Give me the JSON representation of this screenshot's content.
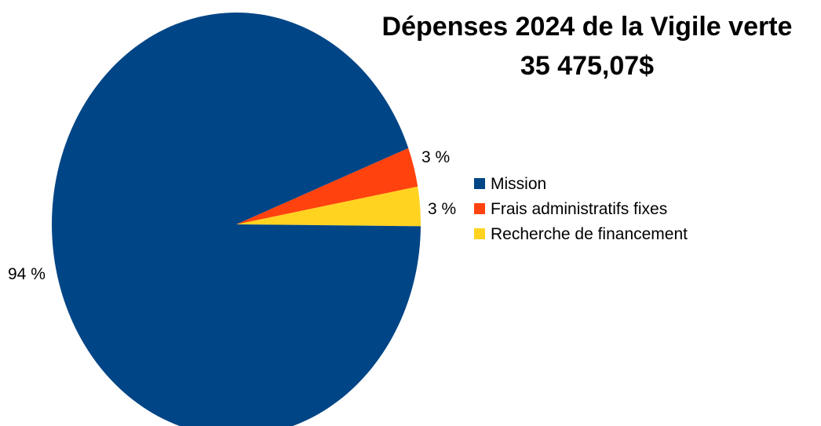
{
  "chart_data": {
    "type": "pie",
    "title": "Dépenses 2024 de la Vigile verte",
    "subtitle": "35 475,07$",
    "categories": [
      "Mission",
      "Frais administratifs fixes",
      "Recherche de financement"
    ],
    "values": [
      94,
      3,
      3
    ],
    "labels": [
      "94 %",
      "3 %",
      "3 %"
    ],
    "colors": [
      "#004586",
      "#FF420E",
      "#FFD320"
    ],
    "legend_position": "right"
  }
}
